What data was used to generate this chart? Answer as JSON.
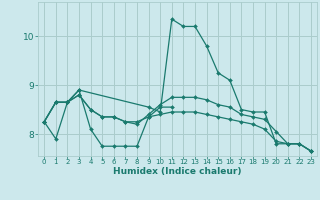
{
  "background_color": "#cce8ec",
  "grid_color": "#aacccc",
  "line_color": "#1a7a6e",
  "xlabel": "Humidex (Indice chaleur)",
  "xlim": [
    -0.5,
    23.5
  ],
  "ylim": [
    7.55,
    10.7
  ],
  "yticks": [
    8,
    9,
    10
  ],
  "xticks": [
    0,
    1,
    2,
    3,
    4,
    5,
    6,
    7,
    8,
    9,
    10,
    11,
    12,
    13,
    14,
    15,
    16,
    17,
    18,
    19,
    20,
    21,
    22,
    23
  ],
  "series": [
    [
      8.25,
      7.9,
      8.65,
      8.9,
      8.1,
      7.75,
      7.75,
      7.75,
      7.75,
      8.35,
      8.55,
      8.55,
      null,
      null,
      null,
      null,
      null,
      null,
      null,
      null,
      null,
      null,
      null,
      null
    ],
    [
      8.25,
      8.65,
      8.65,
      8.9,
      null,
      null,
      null,
      null,
      null,
      8.55,
      8.45,
      10.35,
      10.2,
      10.2,
      9.8,
      9.25,
      9.1,
      8.5,
      8.45,
      8.45,
      7.8,
      7.8,
      7.8,
      7.65
    ],
    [
      8.25,
      8.65,
      8.65,
      8.8,
      8.5,
      8.35,
      8.35,
      8.25,
      8.25,
      8.35,
      8.4,
      8.45,
      8.45,
      8.45,
      8.4,
      8.35,
      8.3,
      8.25,
      8.2,
      8.1,
      7.85,
      7.8,
      7.8,
      7.65
    ],
    [
      8.25,
      8.65,
      8.65,
      8.8,
      8.5,
      8.35,
      8.35,
      8.25,
      8.2,
      8.4,
      8.6,
      8.75,
      8.75,
      8.75,
      8.7,
      8.6,
      8.55,
      8.4,
      8.35,
      8.3,
      8.05,
      7.8,
      7.8,
      7.65
    ]
  ]
}
